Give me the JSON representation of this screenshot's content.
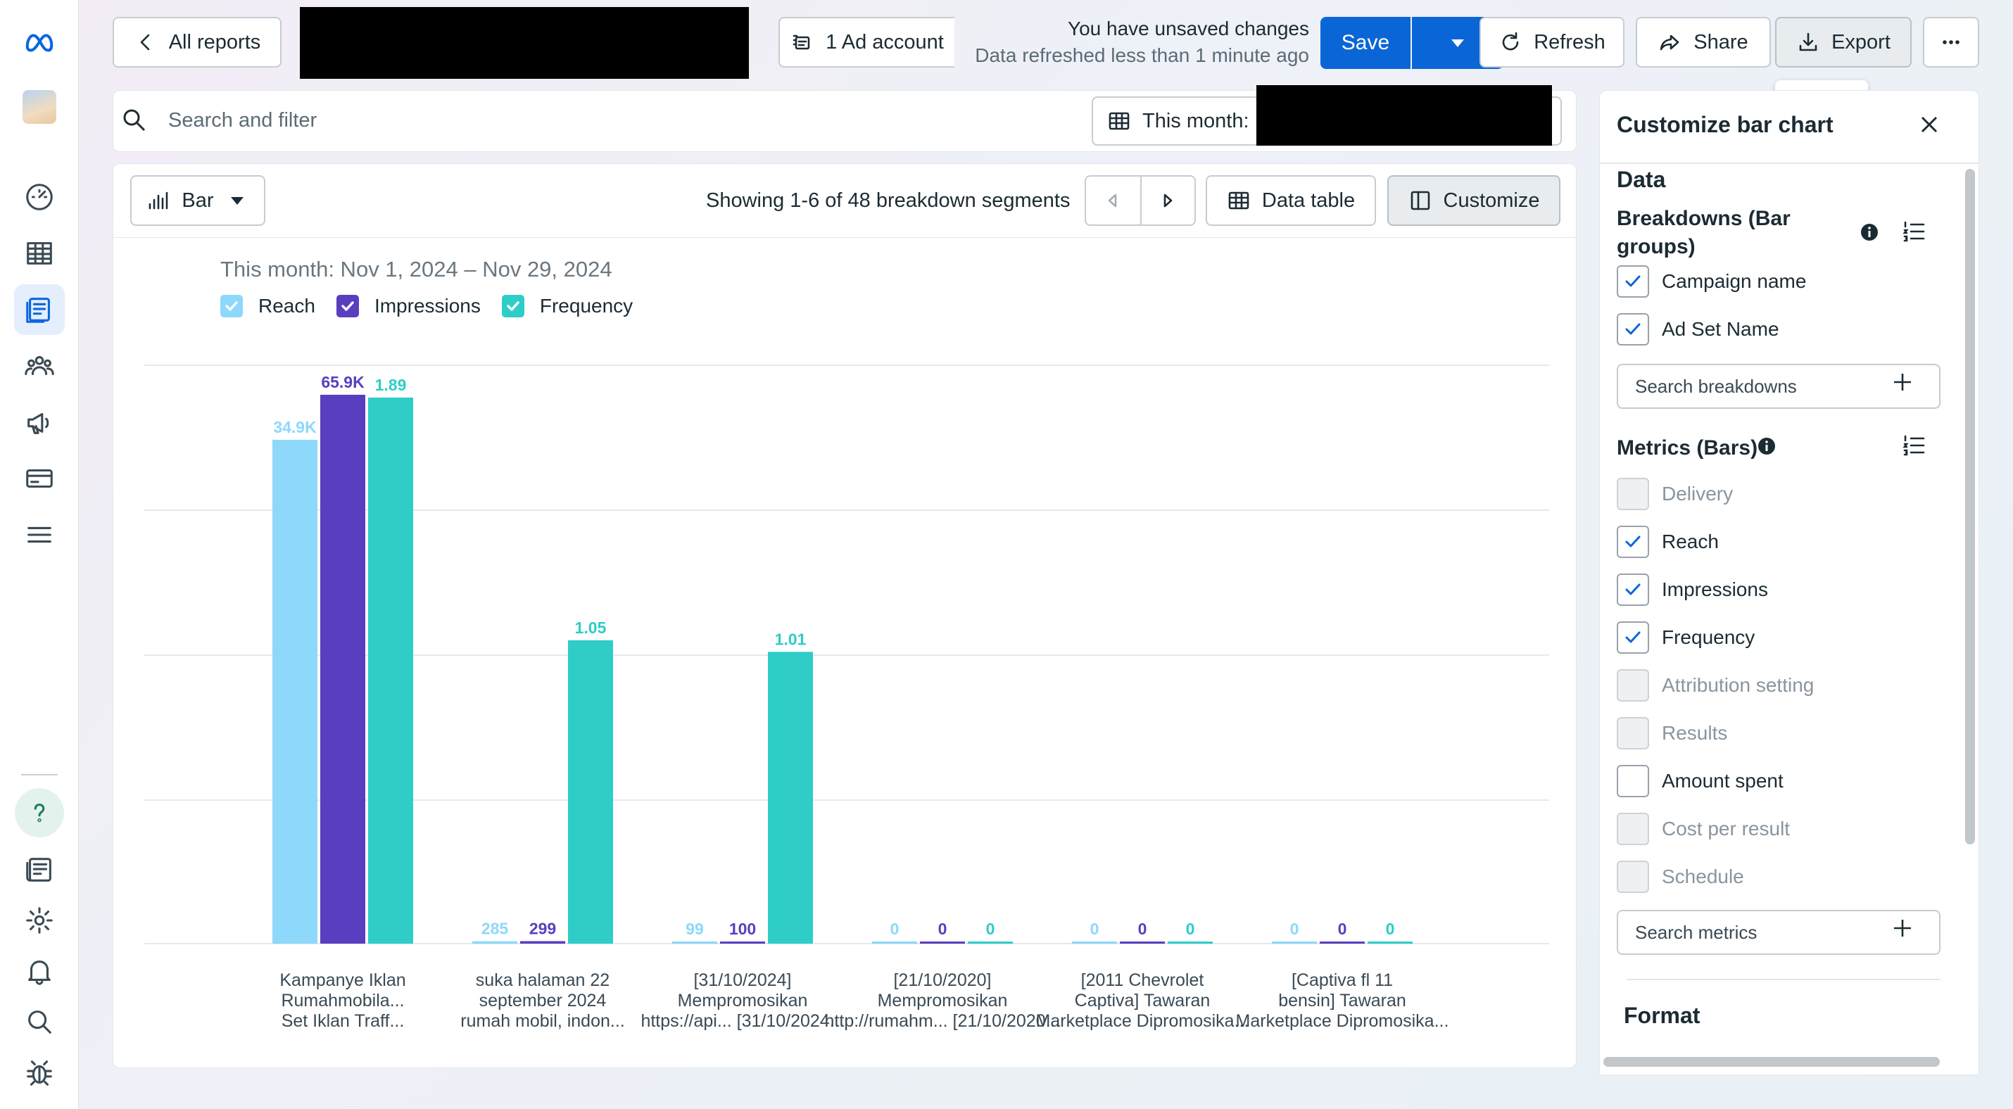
{
  "toolbar": {
    "back_label": "All reports",
    "account_label": "1 Ad account",
    "unsaved_title": "You have unsaved changes",
    "unsaved_sub": "Data refreshed less than 1 minute ago",
    "save_label": "Save",
    "refresh_label": "Refresh",
    "share_label": "Share",
    "export_label": "Export",
    "export_tooltip": "Export"
  },
  "filter": {
    "placeholder": "Search and filter",
    "date_label": "This month:"
  },
  "chart_toolbar": {
    "type_label": "Bar",
    "showing": "Showing 1-6 of 48 breakdown segments",
    "data_table_label": "Data table",
    "customize_label": "Customize"
  },
  "chart_data": {
    "type": "bar",
    "title": "This month: Nov 1, 2024 – Nov 29, 2024",
    "legend_placement": "top-left",
    "grid": true,
    "categories": [
      [
        "Kampanye Iklan",
        "Rumahmobila...",
        "Set Iklan Traff..."
      ],
      [
        "suka halaman 22",
        "september 2024",
        "rumah mobil, indon..."
      ],
      [
        "[31/10/2024]",
        "Mempromosikan",
        "https://api... [31/10/2024..."
      ],
      [
        "[21/10/2020]",
        "Mempromosikan",
        "http://rumahm... [21/10/2020..."
      ],
      [
        "[2011 Chevrolet",
        "Captiva] Tawaran",
        "Marketplace Dipromosika..."
      ],
      [
        "[Captiva fl 11",
        "bensin] Tawaran",
        "Marketplace Dipromosika..."
      ]
    ],
    "series": [
      {
        "name": "Reach",
        "color": "#8ed8fb",
        "values": [
          34900,
          285,
          99,
          0,
          0,
          0
        ],
        "labels": [
          "34.9K",
          "285",
          "99",
          "0",
          "0",
          "0"
        ]
      },
      {
        "name": "Impressions",
        "color": "#5a3ec0",
        "values": [
          65900,
          299,
          100,
          0,
          0,
          0
        ],
        "labels": [
          "65.9K",
          "299",
          "100",
          "0",
          "0",
          "0"
        ]
      },
      {
        "name": "Frequency",
        "color": "#2ecdc8",
        "values": [
          1.89,
          1.05,
          1.01,
          0,
          0,
          0
        ],
        "labels": [
          "1.89",
          "1.05",
          "1.01",
          "0",
          "0",
          "0"
        ]
      }
    ]
  },
  "panel": {
    "title": "Customize bar chart",
    "data_section": "Data",
    "breakdowns_heading": "Breakdowns (Bar groups)",
    "breakdowns": [
      {
        "label": "Campaign name",
        "checked": true
      },
      {
        "label": "Ad Set Name",
        "checked": true
      }
    ],
    "search_breakdowns": "Search breakdowns",
    "metrics_heading": "Metrics (Bars)",
    "metrics": [
      {
        "label": "Delivery",
        "checked": false,
        "disabled": true
      },
      {
        "label": "Reach",
        "checked": true,
        "disabled": false
      },
      {
        "label": "Impressions",
        "checked": true,
        "disabled": false
      },
      {
        "label": "Frequency",
        "checked": true,
        "disabled": false
      },
      {
        "label": "Attribution setting",
        "checked": false,
        "disabled": true
      },
      {
        "label": "Results",
        "checked": false,
        "disabled": true
      },
      {
        "label": "Amount spent",
        "checked": false,
        "disabled": false
      },
      {
        "label": "Cost per result",
        "checked": false,
        "disabled": true
      },
      {
        "label": "Schedule",
        "checked": false,
        "disabled": true
      }
    ],
    "search_metrics": "Search metrics",
    "format_section": "Format"
  }
}
